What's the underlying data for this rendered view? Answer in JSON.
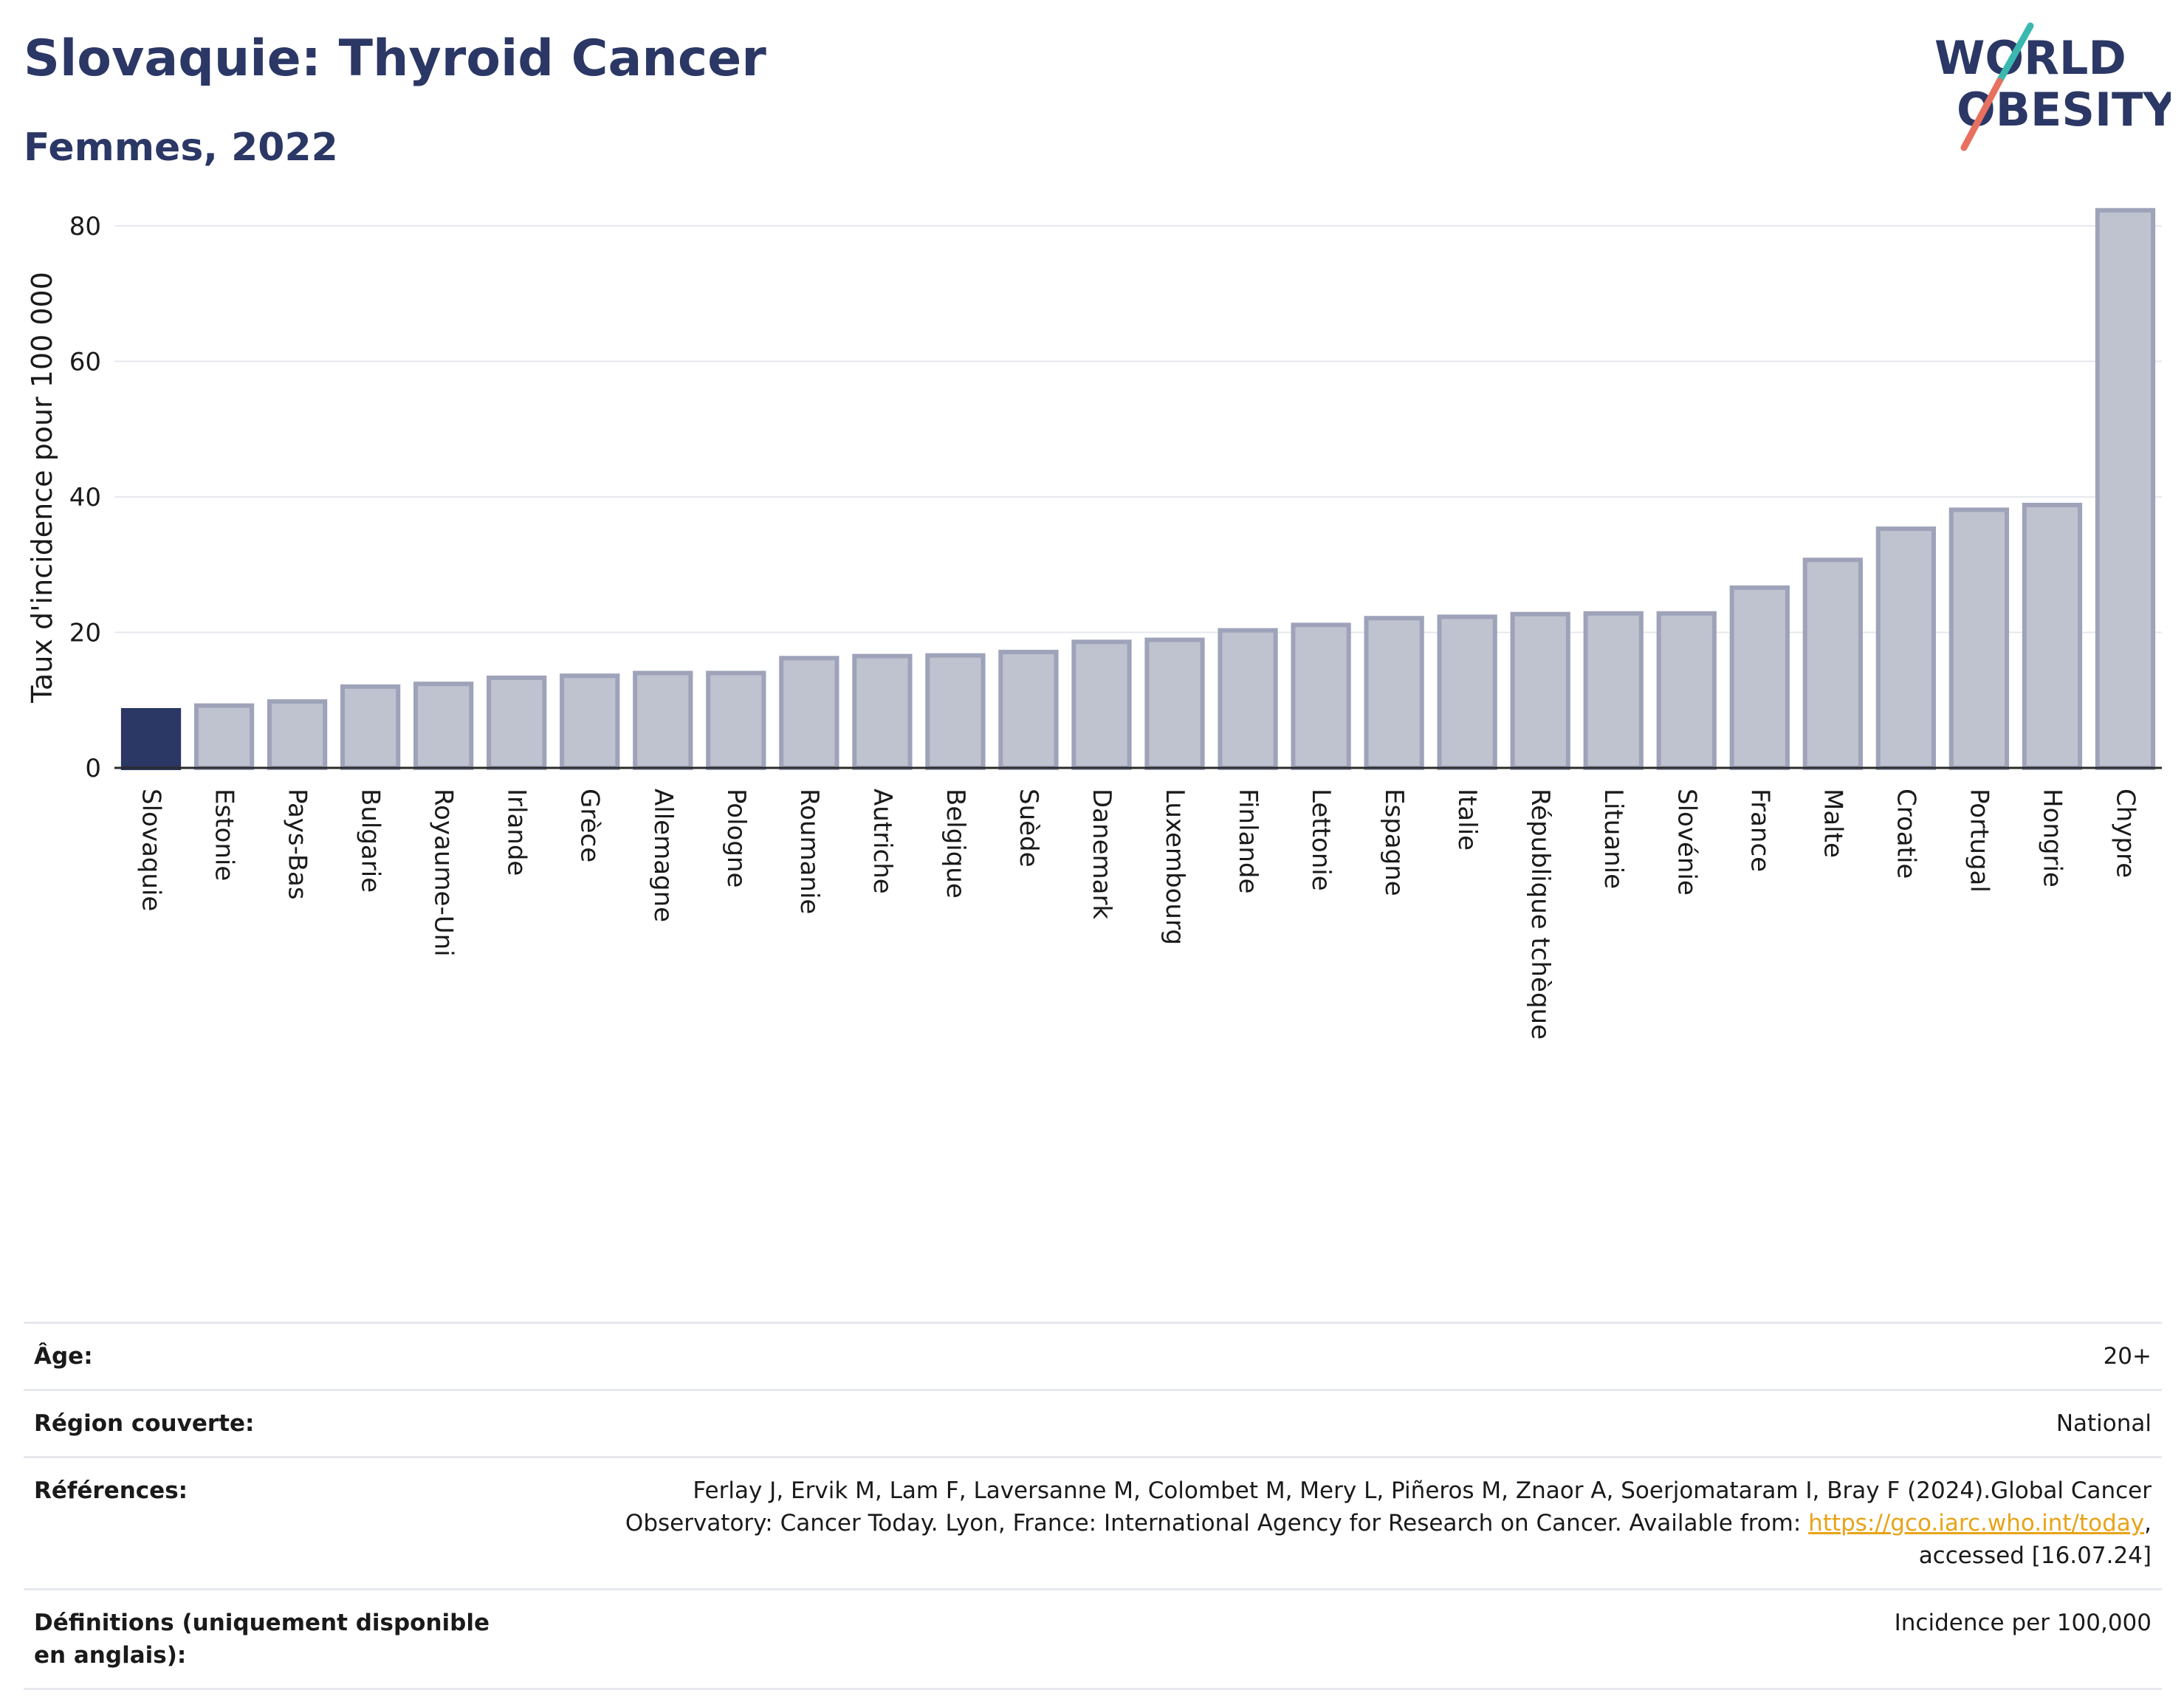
{
  "header": {
    "title": "Slovaquie: Thyroid Cancer",
    "subtitle": "Femmes, 2022"
  },
  "logo": {
    "line1": "WORLD",
    "line2": "OBESITY"
  },
  "colors": {
    "highlight": "#2b3765",
    "bar_fill": "#bfc2cf",
    "bar_stroke": "#9ea3b9",
    "grid": "#e6e8ee",
    "title": "#2b3765",
    "logo_teal": "#3ab8b0",
    "logo_coral": "#e8705f"
  },
  "chart_data": {
    "type": "bar",
    "ylabel": "Taux d'incidence pour 100 000",
    "ylim": [
      0,
      85
    ],
    "yticks": [
      0,
      20,
      40,
      60,
      80
    ],
    "grid": true,
    "highlight": "Slovaquie",
    "categories": [
      "Slovaquie",
      "Estonie",
      "Pays-Bas",
      "Bulgarie",
      "Royaume-Uni",
      "Irlande",
      "Grèce",
      "Allemagne",
      "Pologne",
      "Roumanie",
      "Autriche",
      "Belgique",
      "Suède",
      "Danemark",
      "Luxembourg",
      "Finlande",
      "Lettonie",
      "Espagne",
      "Italie",
      "République tchèque",
      "Lituanie",
      "Slovénie",
      "France",
      "Malte",
      "Croatie",
      "Portugal",
      "Hongrie",
      "Chypre"
    ],
    "values": [
      8.5,
      9.2,
      9.8,
      12.0,
      12.4,
      13.3,
      13.6,
      14.0,
      14.0,
      16.2,
      16.5,
      16.6,
      17.1,
      18.6,
      18.9,
      20.3,
      21.1,
      22.1,
      22.3,
      22.7,
      22.8,
      22.8,
      26.6,
      30.7,
      35.3,
      38.1,
      38.8,
      82.3
    ]
  },
  "meta": {
    "age_label": "Âge:",
    "age_value": "20+",
    "region_label": "Région couverte:",
    "region_value": "National",
    "ref_label": "Références:",
    "ref_text": "Ferlay J, Ervik M, Lam F, Laversanne M, Colombet M, Mery L, Piñeros M, Znaor A, Soerjomataram I, Bray F (2024).Global Cancer Observatory: Cancer Today. Lyon, France: International Agency for Research on Cancer. Available from: ",
    "ref_link": "https://gco.iarc.who.int/today",
    "ref_tail": ", accessed [16.07.24]",
    "def_label": "Définitions (uniquement disponible en anglais):",
    "def_value": "Incidence per 100,000"
  }
}
